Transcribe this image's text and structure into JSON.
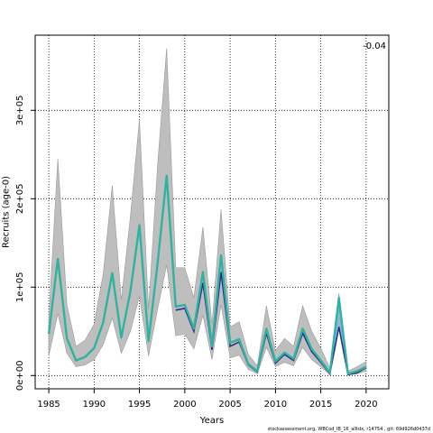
{
  "chart_data": {
    "type": "line",
    "xlabel": "Years",
    "ylabel": "Recruits (age-0)",
    "xlim": [
      1983.5,
      2022.5
    ],
    "ylim": [
      -15000,
      385000
    ],
    "x_ticks": [
      1985,
      1990,
      1995,
      2000,
      2005,
      2010,
      2015,
      2020
    ],
    "x_tick_labels": [
      "1985",
      "1990",
      "1995",
      "2000",
      "2005",
      "2010",
      "2015",
      "2020"
    ],
    "y_ticks": [
      0,
      100000,
      200000,
      300000
    ],
    "y_tick_labels": [
      "0e+00",
      "1e+05",
      "2e+05",
      "3e+05"
    ],
    "grid": true,
    "annotation": "-0.04",
    "footer": "stockassessment.org, WBCod_IB_16_alltdx, r14754 , git: 69d926d0437d",
    "x": [
      1985,
      1986,
      1987,
      1988,
      1989,
      1990,
      1991,
      1992,
      1993,
      1994,
      1995,
      1996,
      1997,
      1998,
      1999,
      2000,
      2001,
      2002,
      2003,
      2004,
      2005,
      2006,
      2007,
      2008,
      2009,
      2010,
      2011,
      2012,
      2013,
      2014,
      2015,
      2016,
      2017,
      2018,
      2019,
      2020
    ],
    "series": [
      {
        "values": [
          47000,
          132000,
          42000,
          17000,
          21000,
          31000,
          60000,
          116000,
          43000,
          95000,
          170000,
          39000,
          127000,
          226000,
          78000,
          80000,
          53000,
          117000,
          33000,
          136000,
          37000,
          41000,
          13000,
          5000,
          53000,
          16000,
          26000,
          19000,
          53000,
          30000,
          17000,
          3000,
          88000,
          2000,
          5000,
          10000
        ],
        "lower": [
          22000,
          70000,
          25000,
          10000,
          12000,
          18000,
          35000,
          65000,
          25000,
          50000,
          90000,
          22000,
          75000,
          125000,
          45000,
          47000,
          30000,
          68000,
          18000,
          80000,
          20000,
          23000,
          7000,
          2000,
          32000,
          10000,
          15000,
          11000,
          32000,
          18000,
          10000,
          1000,
          55000,
          1000,
          2000,
          5000
        ],
        "upper": [
          65000,
          245000,
          80000,
          33000,
          40000,
          58000,
          115000,
          215000,
          85000,
          180000,
          290000,
          75000,
          238000,
          370000,
          122000,
          122000,
          88000,
          168000,
          58000,
          188000,
          55000,
          61000,
          24000,
          11000,
          79000,
          28000,
          42000,
          33000,
          79000,
          50000,
          31000,
          8000,
          93000,
          5000,
          10000,
          16000
        ]
      },
      {
        "x": [
          1999,
          2000,
          2001,
          2002,
          2003,
          2004,
          2005,
          2006,
          2007,
          2008,
          2009,
          2010,
          2011,
          2012,
          2013,
          2014,
          2015,
          2016,
          2017,
          2018,
          2019,
          2020
        ],
        "values": [
          74000,
          76000,
          50000,
          105000,
          29000,
          117000,
          33000,
          38000,
          12000,
          4000,
          48000,
          14000,
          24000,
          17000,
          48000,
          27000,
          15000,
          2000,
          55000,
          1000,
          3000,
          9000
        ]
      }
    ],
    "colors": {
      "band": "#bebebe",
      "band_edge": "#9a9a9a",
      "line": "#2fb3a0",
      "line2": "#2c2f8a",
      "line2_band": "#7fb3e0",
      "grid": "#000000"
    }
  }
}
